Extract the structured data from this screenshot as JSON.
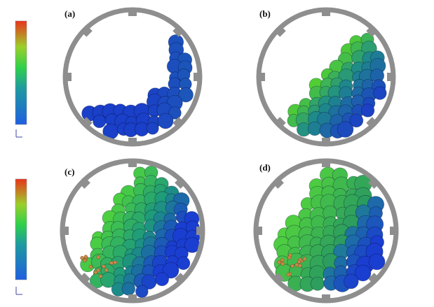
{
  "panels": [
    {
      "label": "(a)"
    },
    {
      "label": "(b)"
    },
    {
      "label": "(c)"
    },
    {
      "label": "(d)"
    }
  ]
}
